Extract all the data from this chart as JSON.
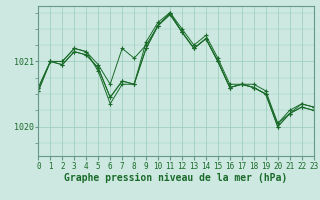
{
  "title": "Graphe pression niveau de la mer (hPa)",
  "background_color": "#cce8e0",
  "grid_color": "#99ccbb",
  "line_color": "#1a6b2a",
  "x_labels": [
    "0",
    "1",
    "2",
    "3",
    "4",
    "5",
    "6",
    "7",
    "8",
    "9",
    "10",
    "11",
    "12",
    "13",
    "14",
    "15",
    "16",
    "17",
    "18",
    "19",
    "20",
    "21",
    "22",
    "23"
  ],
  "yticks": [
    1020,
    1021
  ],
  "ylim": [
    1019.55,
    1021.85
  ],
  "xlim": [
    0,
    23
  ],
  "series": [
    [
      1020.6,
      1021.0,
      1021.0,
      1021.2,
      1021.15,
      1020.95,
      1020.65,
      1021.2,
      1021.05,
      1021.25,
      1021.55,
      1021.75,
      1021.45,
      1021.2,
      1021.35,
      1021.0,
      1020.6,
      1020.65,
      1020.65,
      1020.55,
      1020.05,
      1020.25,
      1020.35,
      1020.3
    ],
    [
      1020.6,
      1021.0,
      1021.0,
      1021.2,
      1021.15,
      1020.85,
      1020.35,
      1020.65,
      1020.65,
      1021.3,
      1021.6,
      1021.75,
      1021.5,
      1021.25,
      1021.4,
      1021.05,
      1020.65,
      1020.65,
      1020.6,
      1020.5,
      1020.05,
      1020.2,
      1020.35,
      1020.3
    ],
    [
      1020.55,
      1021.0,
      1020.95,
      1021.15,
      1021.1,
      1020.9,
      1020.45,
      1020.7,
      1020.65,
      1021.2,
      1021.55,
      1021.72,
      1021.45,
      1021.2,
      1021.35,
      1021.0,
      1020.6,
      1020.65,
      1020.6,
      1020.5,
      1020.0,
      1020.2,
      1020.3,
      1020.25
    ],
    [
      1020.55,
      1021.0,
      1020.95,
      1021.15,
      1021.1,
      1020.9,
      1020.45,
      1020.7,
      1020.65,
      1021.2,
      1021.55,
      1021.72,
      1021.45,
      1021.2,
      1021.35,
      1021.0,
      1020.6,
      1020.65,
      1020.6,
      1020.5,
      1020.0,
      1020.2,
      1020.3,
      1020.25
    ]
  ],
  "title_fontsize": 7,
  "tick_fontsize": 5.5
}
